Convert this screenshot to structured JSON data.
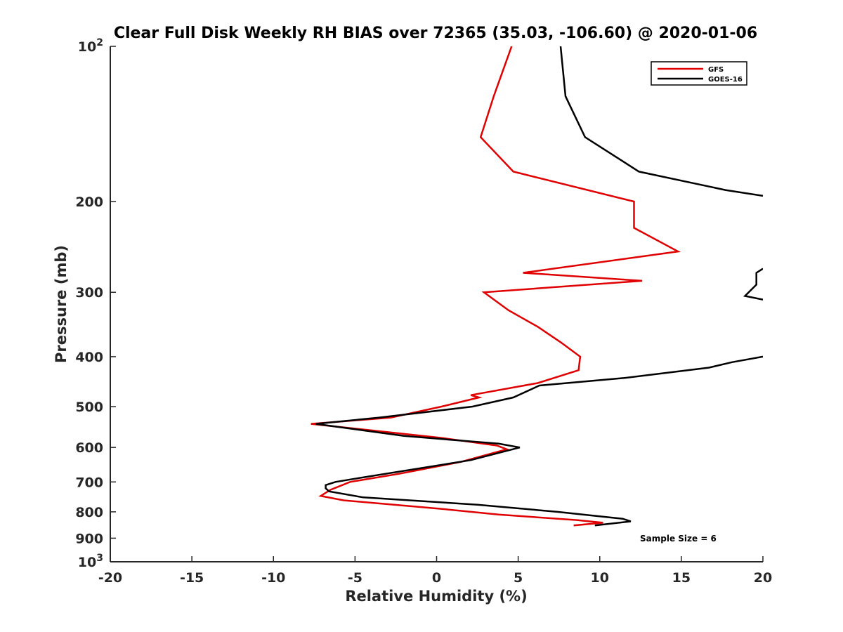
{
  "chart_data": {
    "type": "line",
    "title": "Clear Full Disk Weekly RH BIAS over 72365 (35.03, -106.60) @ 2020-01-06",
    "xlabel": "Relative Humidity (%)",
    "ylabel": "Pressure (mb)",
    "xlim": [
      -20,
      20
    ],
    "ylim": [
      100,
      1000
    ],
    "y_scale": "log",
    "y_reversed": true,
    "grid": false,
    "legend_position": "top-right",
    "x_ticks": [
      -20,
      -15,
      -10,
      -5,
      0,
      5,
      10,
      15,
      20
    ],
    "x_tick_labels": [
      "-20",
      "-15",
      "-10",
      "-5",
      "0",
      "5",
      "10",
      "15",
      "20"
    ],
    "y_ticks": [
      100,
      200,
      300,
      400,
      500,
      600,
      700,
      800,
      900,
      1000
    ],
    "y_tick_labels": [
      {
        "base": "10",
        "exp": "2"
      },
      {
        "base": "200",
        "exp": ""
      },
      {
        "base": "300",
        "exp": ""
      },
      {
        "base": "400",
        "exp": ""
      },
      {
        "base": "500",
        "exp": ""
      },
      {
        "base": "600",
        "exp": ""
      },
      {
        "base": "700",
        "exp": ""
      },
      {
        "base": "800",
        "exp": ""
      },
      {
        "base": "900",
        "exp": ""
      },
      {
        "base": "10",
        "exp": "3"
      }
    ],
    "series": [
      {
        "name": "GFS",
        "color": "#e00000",
        "points": [
          [
            4.6,
            100
          ],
          [
            3.5,
            125
          ],
          [
            2.7,
            150
          ],
          [
            4.7,
            175
          ],
          [
            12.1,
            200
          ],
          [
            12.1,
            225
          ],
          [
            14.8,
            250
          ],
          [
            5.3,
            275
          ],
          [
            12.6,
            285
          ],
          [
            2.9,
            300
          ],
          [
            4.4,
            325
          ],
          [
            6.2,
            350
          ],
          [
            7.6,
            375
          ],
          [
            8.8,
            400
          ],
          [
            8.7,
            425
          ],
          [
            6.2,
            450
          ],
          [
            2.1,
            475
          ],
          [
            2.6,
            480
          ],
          [
            0.3,
            500
          ],
          [
            -2.8,
            525
          ],
          [
            -7.7,
            540
          ],
          [
            0.3,
            575
          ],
          [
            3.7,
            595
          ],
          [
            4.3,
            605
          ],
          [
            1.5,
            640
          ],
          [
            -2.3,
            675
          ],
          [
            -5.3,
            700
          ],
          [
            -6.5,
            725
          ],
          [
            -7.1,
            745
          ],
          [
            -5.7,
            760
          ],
          [
            0.4,
            790
          ],
          [
            3.8,
            810
          ],
          [
            8.6,
            830
          ],
          [
            10.2,
            840
          ],
          [
            8.4,
            850
          ]
        ]
      },
      {
        "name": "GOES-16",
        "color": "#000000",
        "segments": [
          [
            [
              7.6,
              100
            ],
            [
              7.9,
              125
            ],
            [
              9.1,
              150
            ],
            [
              12.4,
              175
            ],
            [
              17.7,
              190
            ],
            [
              20,
              195
            ]
          ],
          [
            [
              20,
              270
            ],
            [
              19.6,
              275
            ],
            [
              19.6,
              290
            ],
            [
              18.9,
              305
            ],
            [
              20,
              310
            ]
          ],
          [
            [
              20,
              400
            ],
            [
              18.1,
              410
            ],
            [
              16.7,
              420
            ],
            [
              11.5,
              440
            ],
            [
              6.3,
              455
            ],
            [
              4.7,
              480
            ],
            [
              2.2,
              500
            ],
            [
              -3.5,
              525
            ],
            [
              -7.4,
              540
            ],
            [
              -2.0,
              570
            ],
            [
              3.8,
              590
            ],
            [
              5.1,
              600
            ],
            [
              2.1,
              635
            ],
            [
              -5.0,
              690
            ],
            [
              -6.2,
              700
            ],
            [
              -6.8,
              710
            ],
            [
              -6.8,
              720
            ],
            [
              -6.6,
              730
            ],
            [
              -4.5,
              750
            ],
            [
              2.5,
              775
            ],
            [
              7.4,
              800
            ],
            [
              11.4,
              825
            ],
            [
              11.9,
              835
            ],
            [
              9.7,
              850
            ]
          ]
        ]
      }
    ],
    "annotations": [
      {
        "text": "Sample Size = 6",
        "at": [
          10.2,
          890
        ]
      }
    ],
    "legend": {
      "entries": [
        "GFS",
        "GOES-16"
      ]
    }
  }
}
